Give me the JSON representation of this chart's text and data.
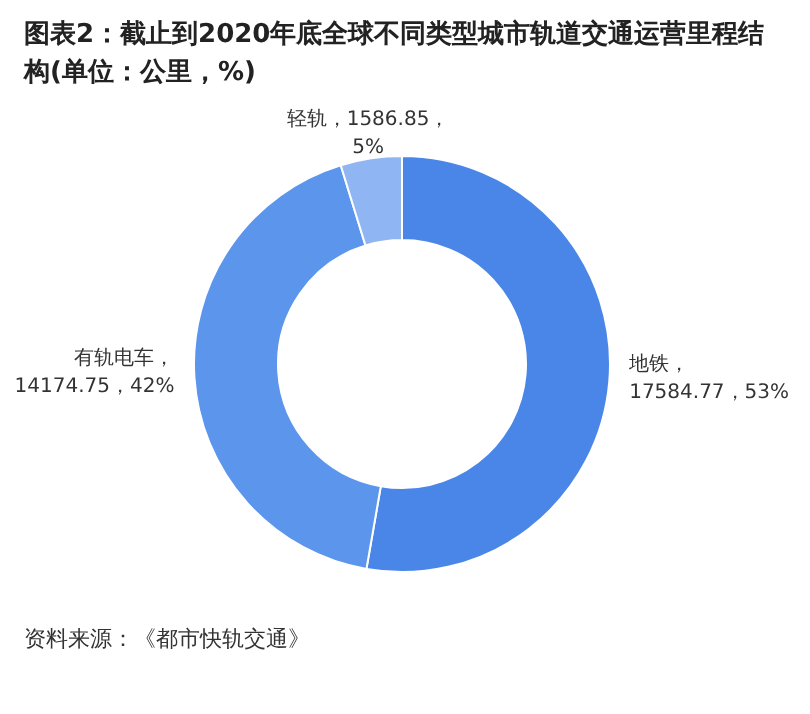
{
  "chart_data": {
    "type": "donut",
    "title": "图表2：截止到2020年底全球不同类型城市轨道交通运营里程结构(单位：公里，%)",
    "categories": [
      "地铁",
      "有轨电车",
      "轻轨"
    ],
    "values": [
      17584.77,
      14174.75,
      1586.85
    ],
    "colors": [
      "#4a86e8",
      "#5b95ec",
      "#8fb6f3"
    ],
    "value_labels": [
      "，\n17584.77，53%",
      "，\n14174.75，42%",
      "，1586.85，\n5%"
    ],
    "legend": false,
    "annotations": [
      "资料来源：《都市快轨交通》"
    ]
  }
}
